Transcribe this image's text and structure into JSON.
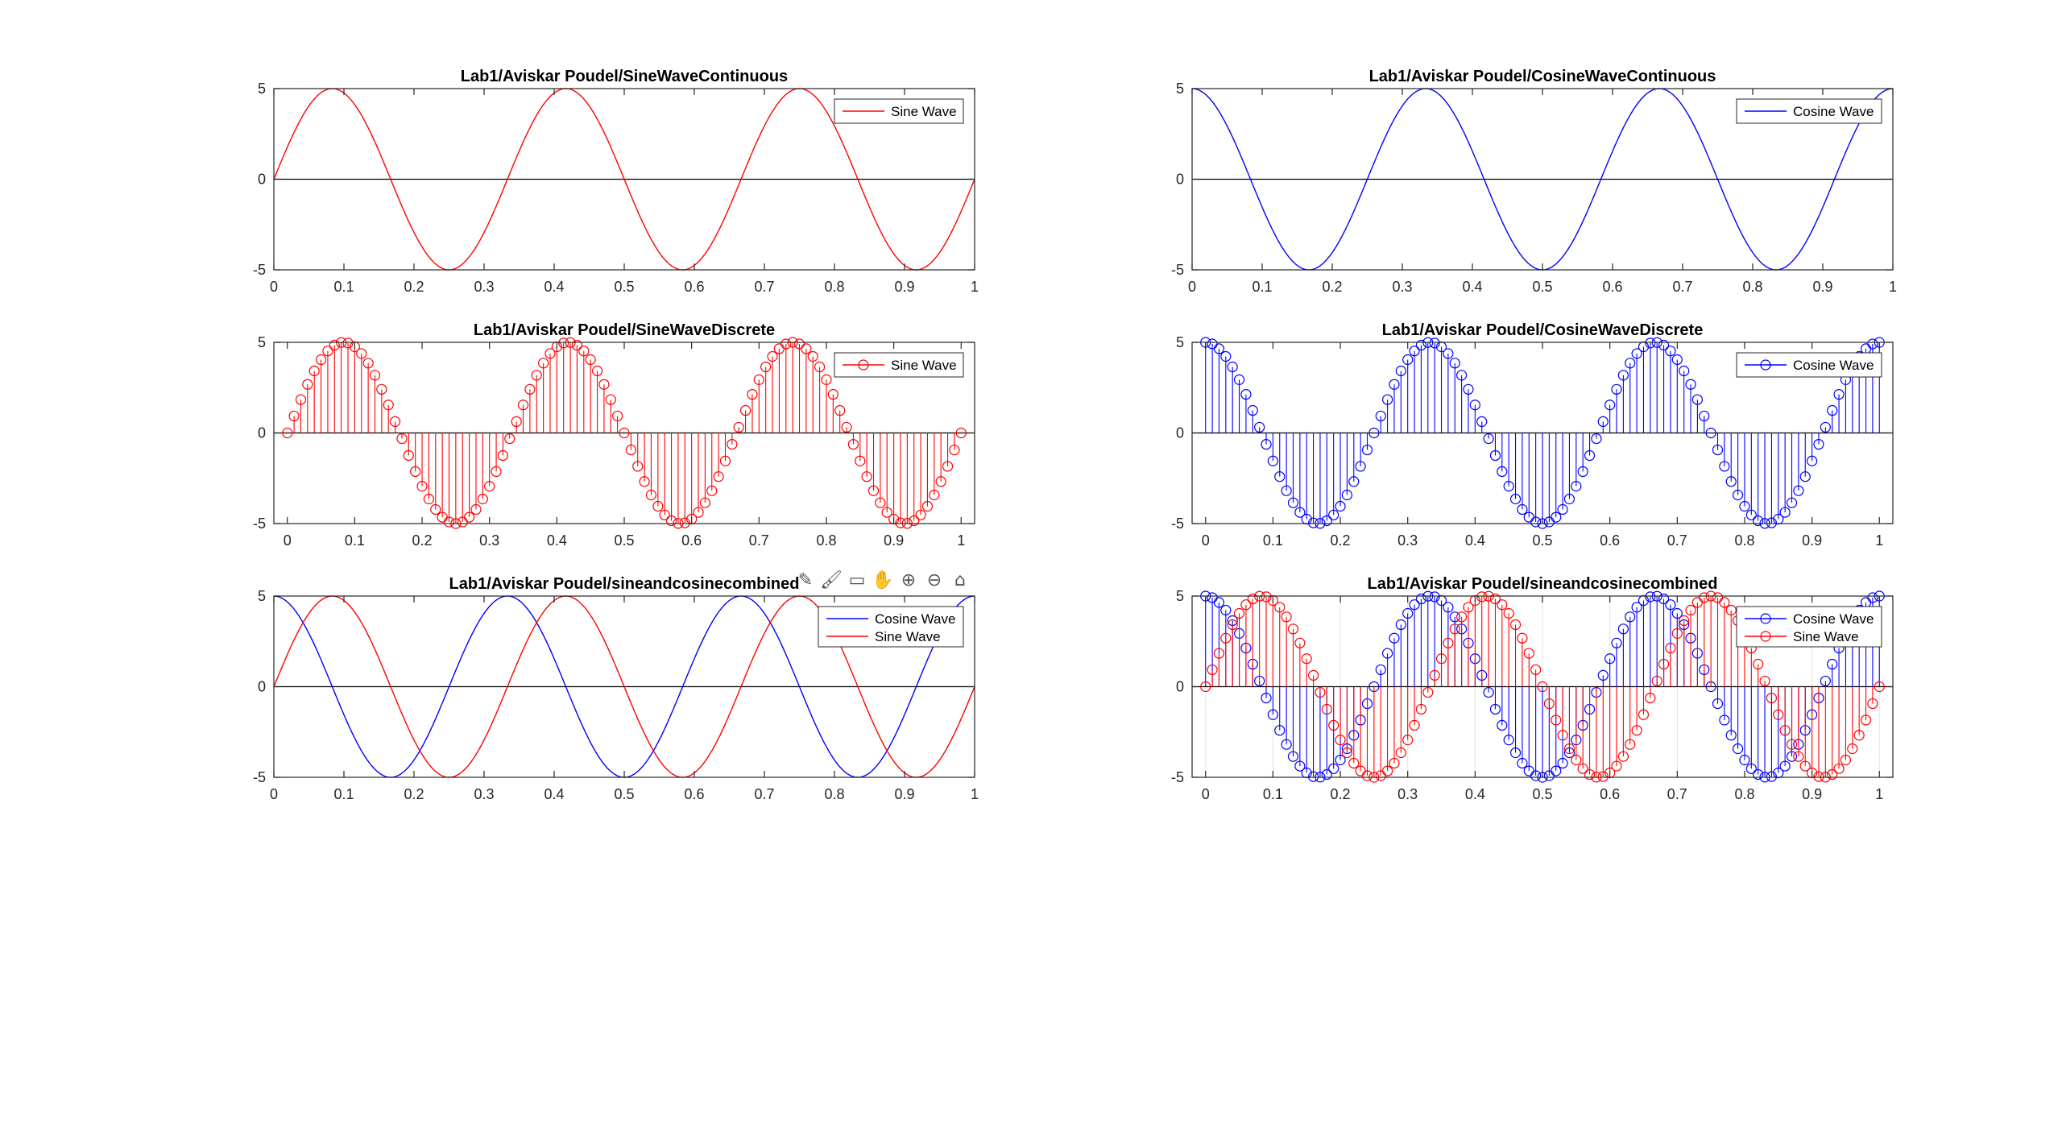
{
  "toolbar": {
    "icons": [
      {
        "name": "data-tip-icon",
        "glyph": "✎"
      },
      {
        "name": "brush-icon",
        "glyph": "🖌"
      },
      {
        "name": "export-icon",
        "glyph": "▭"
      },
      {
        "name": "pan-icon",
        "glyph": "✋"
      },
      {
        "name": "zoom-in-icon",
        "glyph": "⊕"
      },
      {
        "name": "zoom-out-icon",
        "glyph": "⊖"
      },
      {
        "name": "home-icon",
        "glyph": "⌂"
      }
    ]
  },
  "chart_data": [
    {
      "id": "p1",
      "type": "line",
      "title": "Lab1/Aviskar Poudel/SineWaveContinuous",
      "xlim": [
        0,
        1
      ],
      "ylim": [
        -5,
        5
      ],
      "xticks": [
        "0",
        "0.1",
        "0.2",
        "0.3",
        "0.4",
        "0.5",
        "0.6",
        "0.7",
        "0.8",
        "0.9",
        "1"
      ],
      "yticks": [
        "-5",
        "0",
        "5"
      ],
      "legend_position": "top-right",
      "series": [
        {
          "name": "Sine Wave",
          "color": "#ff0000",
          "function": "5*sin(6*pi*x)",
          "style": "continuous"
        }
      ]
    },
    {
      "id": "p2",
      "type": "line",
      "title": "Lab1/Aviskar Poudel/CosineWaveContinuous",
      "xlim": [
        0,
        1
      ],
      "ylim": [
        -5,
        5
      ],
      "xticks": [
        "0",
        "0.1",
        "0.2",
        "0.3",
        "0.4",
        "0.5",
        "0.6",
        "0.7",
        "0.8",
        "0.9",
        "1"
      ],
      "yticks": [
        "-5",
        "0",
        "5"
      ],
      "legend_position": "top-right",
      "series": [
        {
          "name": "Cosine Wave",
          "color": "#0000ff",
          "function": "5*cos(6*pi*x)",
          "style": "continuous"
        }
      ]
    },
    {
      "id": "p3",
      "type": "stem",
      "title": "Lab1/Aviskar Poudel/SineWaveDiscrete",
      "xlim": [
        -0.02,
        1.02
      ],
      "ylim": [
        -5,
        5
      ],
      "xticks": [
        "0",
        "0.1",
        "0.2",
        "0.3",
        "0.4",
        "0.5",
        "0.6",
        "0.7",
        "0.8",
        "0.9",
        "1"
      ],
      "yticks": [
        "-5",
        "0",
        "5"
      ],
      "legend_position": "top-right",
      "samples": {
        "x_start": 0,
        "x_end": 1,
        "count": 101
      },
      "series": [
        {
          "name": "Sine Wave",
          "color": "#ff0000",
          "function": "5*sin(6*pi*x)",
          "style": "stem"
        }
      ]
    },
    {
      "id": "p4",
      "type": "stem",
      "title": "Lab1/Aviskar Poudel/CosineWaveDiscrete",
      "xlim": [
        -0.02,
        1.02
      ],
      "ylim": [
        -5,
        5
      ],
      "xticks": [
        "0",
        "0.1",
        "0.2",
        "0.3",
        "0.4",
        "0.5",
        "0.6",
        "0.7",
        "0.8",
        "0.9",
        "1"
      ],
      "yticks": [
        "-5",
        "0",
        "5"
      ],
      "legend_position": "top-right",
      "samples": {
        "x_start": 0,
        "x_end": 1,
        "count": 101
      },
      "series": [
        {
          "name": "Cosine Wave",
          "color": "#0000ff",
          "function": "5*cos(6*pi*x)",
          "style": "stem"
        }
      ]
    },
    {
      "id": "p5",
      "type": "line",
      "title": "Lab1/Aviskar Poudel/sineandcosinecombined",
      "xlim": [
        0,
        1
      ],
      "ylim": [
        -5,
        5
      ],
      "xticks": [
        "0",
        "0.1",
        "0.2",
        "0.3",
        "0.4",
        "0.5",
        "0.6",
        "0.7",
        "0.8",
        "0.9",
        "1"
      ],
      "yticks": [
        "-5",
        "0",
        "5"
      ],
      "legend_position": "top-right",
      "series": [
        {
          "name": "Cosine Wave",
          "color": "#0000ff",
          "function": "5*cos(6*pi*x)",
          "style": "continuous"
        },
        {
          "name": "Sine Wave",
          "color": "#ff0000",
          "function": "5*sin(6*pi*x)",
          "style": "continuous"
        }
      ]
    },
    {
      "id": "p6",
      "type": "stem",
      "title": "Lab1/Aviskar Poudel/sineandcosinecombined",
      "xlim": [
        -0.02,
        1.02
      ],
      "ylim": [
        -5,
        5
      ],
      "xticks": [
        "0",
        "0.1",
        "0.2",
        "0.3",
        "0.4",
        "0.5",
        "0.6",
        "0.7",
        "0.8",
        "0.9",
        "1"
      ],
      "yticks": [
        "-5",
        "0",
        "5"
      ],
      "legend_position": "top-right",
      "samples": {
        "x_start": 0,
        "x_end": 1,
        "count": 101
      },
      "grid": true,
      "series": [
        {
          "name": "Cosine Wave",
          "color": "#0000ff",
          "function": "5*cos(6*pi*x)",
          "style": "stem"
        },
        {
          "name": "Sine Wave",
          "color": "#ff0000",
          "function": "5*sin(6*pi*x)",
          "style": "stem"
        }
      ]
    }
  ]
}
